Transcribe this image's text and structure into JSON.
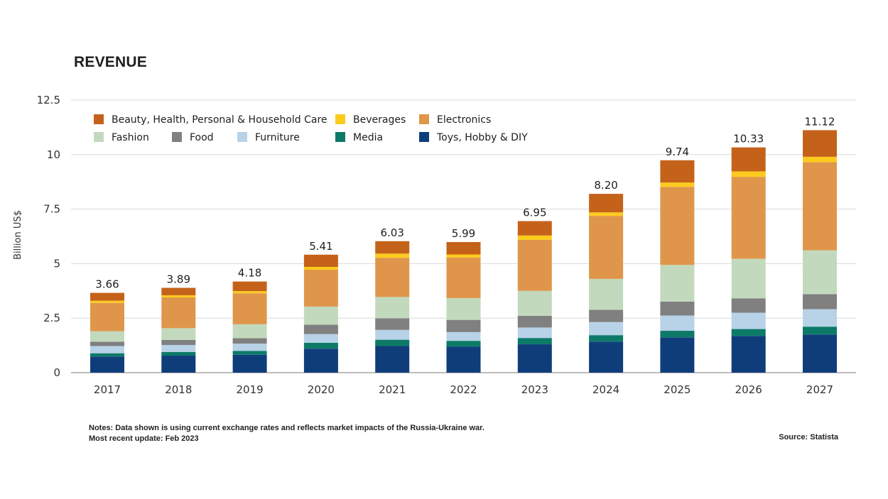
{
  "title": "REVENUE",
  "notes": {
    "line1": "Notes: Data shown is using current exchange rates and reflects market impacts of the Russia-Ukraine war.",
    "line2": "Most recent update: Feb 2023"
  },
  "source": "Source: Statista",
  "chart_data": {
    "type": "bar",
    "stacked": true,
    "title": "REVENUE",
    "xlabel": "",
    "ylabel": "Billion US$",
    "ylim": [
      0,
      12.5
    ],
    "yticks": [
      0,
      2.5,
      5,
      7.5,
      10,
      12.5
    ],
    "ytick_labels": [
      "0",
      "2.5",
      "5",
      "7.5",
      "10",
      "12.5"
    ],
    "grid": true,
    "legend_position": "top-left",
    "categories": [
      "2017",
      "2018",
      "2019",
      "2020",
      "2021",
      "2022",
      "2023",
      "2024",
      "2025",
      "2026",
      "2027"
    ],
    "totals": [
      3.66,
      3.89,
      4.18,
      5.41,
      6.03,
      5.99,
      6.95,
      8.2,
      9.74,
      10.33,
      11.12
    ],
    "total_labels": [
      "3.66",
      "3.89",
      "4.18",
      "5.41",
      "6.03",
      "5.99",
      "6.95",
      "8.20",
      "9.74",
      "10.33",
      "11.12"
    ],
    "series": [
      {
        "name": "Toys, Hobby & DIY",
        "color": "#0f3d7a",
        "values": [
          0.74,
          0.78,
          0.82,
          1.1,
          1.22,
          1.19,
          1.3,
          1.42,
          1.62,
          1.68,
          1.75
        ]
      },
      {
        "name": "Media",
        "color": "#0d7a68",
        "values": [
          0.15,
          0.17,
          0.18,
          0.27,
          0.29,
          0.27,
          0.29,
          0.3,
          0.3,
          0.32,
          0.36
        ]
      },
      {
        "name": "Furniture",
        "color": "#b8d2e8",
        "values": [
          0.33,
          0.32,
          0.33,
          0.4,
          0.45,
          0.4,
          0.48,
          0.6,
          0.7,
          0.75,
          0.8
        ]
      },
      {
        "name": "Food",
        "color": "#808080",
        "values": [
          0.2,
          0.23,
          0.25,
          0.43,
          0.53,
          0.56,
          0.54,
          0.56,
          0.64,
          0.66,
          0.69
        ]
      },
      {
        "name": "Fashion",
        "color": "#c3d9bd",
        "values": [
          0.48,
          0.54,
          0.64,
          0.83,
          0.98,
          1.0,
          1.14,
          1.42,
          1.68,
          1.81,
          2.01
        ]
      },
      {
        "name": "Electronics",
        "color": "#df964b",
        "values": [
          1.3,
          1.41,
          1.42,
          1.69,
          1.8,
          1.86,
          2.34,
          2.89,
          3.58,
          3.76,
          4.04
        ]
      },
      {
        "name": "Beverages",
        "color": "#fccb1e",
        "values": [
          0.1,
          0.1,
          0.1,
          0.13,
          0.19,
          0.14,
          0.2,
          0.16,
          0.2,
          0.25,
          0.25
        ]
      },
      {
        "name": "Beauty, Health, Personal & Household Care",
        "color": "#c5621a",
        "values": [
          0.36,
          0.34,
          0.44,
          0.56,
          0.57,
          0.57,
          0.66,
          0.85,
          1.02,
          1.1,
          1.22
        ]
      }
    ],
    "legend_order": [
      "Beauty, Health, Personal & Household Care",
      "Beverages",
      "Electronics",
      "Fashion",
      "Food",
      "Furniture",
      "Media",
      "Toys, Hobby & DIY"
    ]
  }
}
